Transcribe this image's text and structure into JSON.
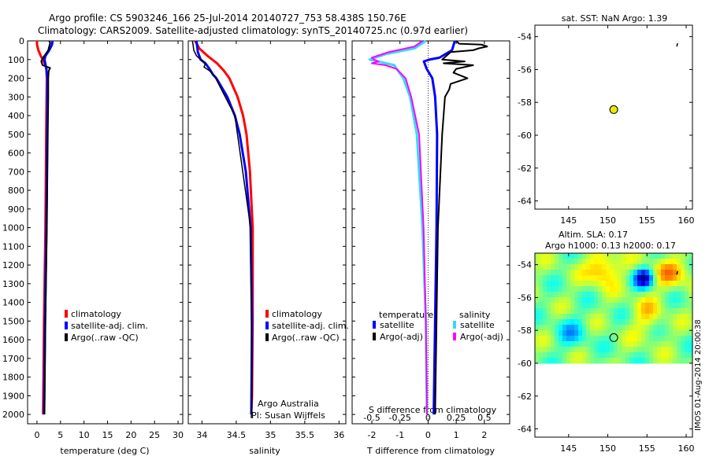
{
  "header": {
    "line1": "Argo profile: CS 5903246_166 25-Jul-2014 20140727_753 58.438S 150.76E",
    "line2": "Climatology: CARS2009. Satellite-adjusted climatology: synTS_20140725.nc (0.97d earlier)"
  },
  "colors": {
    "climatology": "#ff0000",
    "satellite": "#0000ff",
    "argo": "#000000",
    "sat_salinity": "#33ddee",
    "argo_salinity": "#ff00ff"
  },
  "chart_data": [
    {
      "type": "line",
      "id": "temperature",
      "xlabel": "temperature (deg C)",
      "ylabel": "",
      "xlim": [
        -2,
        31
      ],
      "ylim": [
        2050,
        0
      ],
      "xticks": [
        0,
        5,
        10,
        15,
        20,
        25,
        30
      ],
      "yticks": [
        0,
        100,
        200,
        300,
        400,
        500,
        600,
        700,
        800,
        900,
        1000,
        1100,
        1200,
        1300,
        1400,
        1500,
        1600,
        1700,
        1800,
        1900,
        2000
      ],
      "legend": [
        "climatology",
        "satellite-adj. clim.",
        "Argo(..raw -QC)"
      ],
      "series": [
        {
          "name": "climatology",
          "depth": [
            0,
            20,
            50,
            80,
            100,
            130,
            150,
            200,
            400,
            1000,
            1500,
            2000
          ],
          "values": [
            0.0,
            0.0,
            0.3,
            0.8,
            1.2,
            1.8,
            2.0,
            2.1,
            2.0,
            1.8,
            1.5,
            1.3
          ]
        },
        {
          "name": "satellite-adj. clim.",
          "depth": [
            0,
            20,
            50,
            80,
            100,
            150,
            200,
            400,
            1000,
            1500,
            2000
          ],
          "values": [
            3.3,
            3.2,
            2.6,
            1.8,
            1.6,
            2.0,
            2.2,
            2.2,
            2.0,
            1.7,
            1.5
          ]
        },
        {
          "name": "Argo(..raw -QC)",
          "depth": [
            0,
            10,
            50,
            90,
            110,
            130,
            145,
            160,
            200,
            300,
            500,
            1000,
            1500,
            2000
          ],
          "values": [
            2.6,
            2.8,
            2.4,
            1.3,
            0.9,
            1.2,
            2.8,
            2.5,
            2.4,
            2.4,
            2.3,
            2.1,
            1.8,
            1.6
          ]
        }
      ]
    },
    {
      "type": "line",
      "id": "salinity",
      "xlabel": "salinity",
      "ylabel": "",
      "xlim": [
        33.8,
        36.1
      ],
      "ylim": [
        2050,
        0
      ],
      "xticks": [
        34,
        34.5,
        35,
        35.5,
        36
      ],
      "legend": [
        "climatology",
        "satellite-adj. clim.",
        "Argo(..raw -QC)"
      ],
      "annotation": [
        "Argo Australia",
        "PI: Susan Wijffels"
      ],
      "series": [
        {
          "name": "climatology",
          "depth": [
            0,
            40,
            80,
            120,
            160,
            200,
            300,
            400,
            500,
            700,
            1000,
            1500,
            1900,
            2000
          ],
          "values": [
            33.9,
            33.96,
            34.08,
            34.22,
            34.32,
            34.4,
            34.52,
            34.6,
            34.65,
            34.7,
            34.74,
            34.74,
            34.73,
            34.72
          ],
          "stroke": 3
        },
        {
          "name": "satellite-adj. clim.",
          "depth": [
            0,
            60,
            100,
            120,
            150,
            180,
            200,
            300,
            400,
            500,
            700,
            1000,
            1500,
            2000
          ],
          "values": [
            33.92,
            33.94,
            33.98,
            34.05,
            34.11,
            34.16,
            34.21,
            34.37,
            34.48,
            34.55,
            34.64,
            34.71,
            34.73,
            34.72
          ],
          "stroke": 3
        },
        {
          "name": "Argo(..raw -QC)",
          "depth": [
            0,
            20,
            50,
            80,
            100,
            120,
            140,
            160,
            180,
            200,
            400,
            1000,
            1900,
            2020
          ],
          "values": [
            33.86,
            33.87,
            33.88,
            33.92,
            33.98,
            34.05,
            34.03,
            34.11,
            34.16,
            34.2,
            34.48,
            34.71,
            34.73,
            34.72
          ],
          "stroke": 1.5
        }
      ]
    },
    {
      "type": "line",
      "id": "difference",
      "xlabel": "T difference from climatology",
      "x2label": "S difference from climatology",
      "xlim": [
        -2.7,
        2.9
      ],
      "x2lim": [
        -0.675,
        0.725
      ],
      "xticks": [
        -2,
        -1,
        0,
        1,
        2
      ],
      "x2ticks": [
        -0.5,
        -0.25,
        0,
        0.25,
        0.5
      ],
      "x2ticklabels": [
        "-0.5",
        "-0.25",
        "0",
        "0.25",
        "0.5"
      ],
      "legend_titles": [
        "temperature",
        "salinity"
      ],
      "legend": [
        "satellite",
        "Argo(-adj)",
        "satellite",
        "Argo(-adj)"
      ],
      "series": [
        {
          "name": "T satellite",
          "depth": [
            0,
            50,
            90,
            100,
            110,
            130,
            150,
            200,
            300,
            500,
            1000,
            1500,
            2000
          ],
          "values": [
            0.95,
            0.85,
            0.4,
            0.05,
            -0.15,
            -0.1,
            -0.05,
            0.15,
            0.25,
            0.32,
            0.3,
            0.25,
            0.2
          ]
        },
        {
          "name": "T Argo(-adj)",
          "depth": [
            0,
            15,
            20,
            30,
            40,
            50,
            60,
            80,
            100,
            110,
            120,
            130,
            150,
            170,
            200,
            230,
            260,
            300,
            500,
            1000,
            1500,
            2000
          ],
          "values": [
            1.0,
            1.1,
            1.9,
            2.1,
            1.8,
            1.6,
            0.8,
            0.65,
            0.5,
            1.3,
            0.55,
            1.6,
            1.0,
            0.9,
            1.4,
            0.8,
            0.75,
            0.6,
            0.5,
            0.35,
            0.3,
            0.25
          ]
        },
        {
          "name": "S satellite",
          "depth": [
            0,
            40,
            70,
            100,
            130,
            150,
            200,
            300,
            500,
            1000,
            1500,
            2000
          ],
          "values": [
            -0.02,
            -0.12,
            -0.37,
            -0.52,
            -0.3,
            -0.28,
            -0.22,
            -0.16,
            -0.1,
            -0.05,
            -0.02,
            -0.01
          ]
        },
        {
          "name": "S Argo(-adj)",
          "depth": [
            0,
            30,
            60,
            90,
            100,
            110,
            120,
            130,
            150,
            200,
            300,
            500,
            1000,
            1500,
            2000
          ],
          "values": [
            -0.05,
            -0.12,
            -0.35,
            -0.5,
            -0.48,
            -0.44,
            -0.5,
            -0.38,
            -0.28,
            -0.2,
            -0.15,
            -0.08,
            -0.04,
            -0.02,
            -0.01
          ]
        }
      ]
    },
    {
      "type": "scatter",
      "id": "sst_map",
      "title": "sat. SST: NaN Argo: 1.39",
      "xlim": [
        140.7,
        160.8
      ],
      "ylim": [
        -64.5,
        -53.3
      ],
      "xticks": [
        145,
        150,
        155,
        160
      ],
      "yticks": [
        -54,
        -56,
        -58,
        -60,
        -62,
        -64
      ],
      "points": [
        {
          "name": "Argo float",
          "x": 150.76,
          "y": -58.44
        }
      ]
    },
    {
      "type": "heatmap",
      "id": "sla_map",
      "title1": "Altim. SLA: 0.17",
      "title2": "Argo h1000: 0.13 h2000: 0.17",
      "xlim": [
        140.7,
        160.8
      ],
      "ylim": [
        -64.5,
        -53.3
      ],
      "xticks": [
        145,
        150,
        155,
        160
      ],
      "yticks": [
        -54,
        -56,
        -58,
        -60,
        -62,
        -64
      ],
      "points": [
        {
          "name": "Argo float",
          "x": 150.76,
          "y": -58.44
        }
      ],
      "field_lat_range": [
        -60,
        -53.3
      ]
    }
  ],
  "stamp": "IMOS 01-Aug-2014 20:00:38"
}
